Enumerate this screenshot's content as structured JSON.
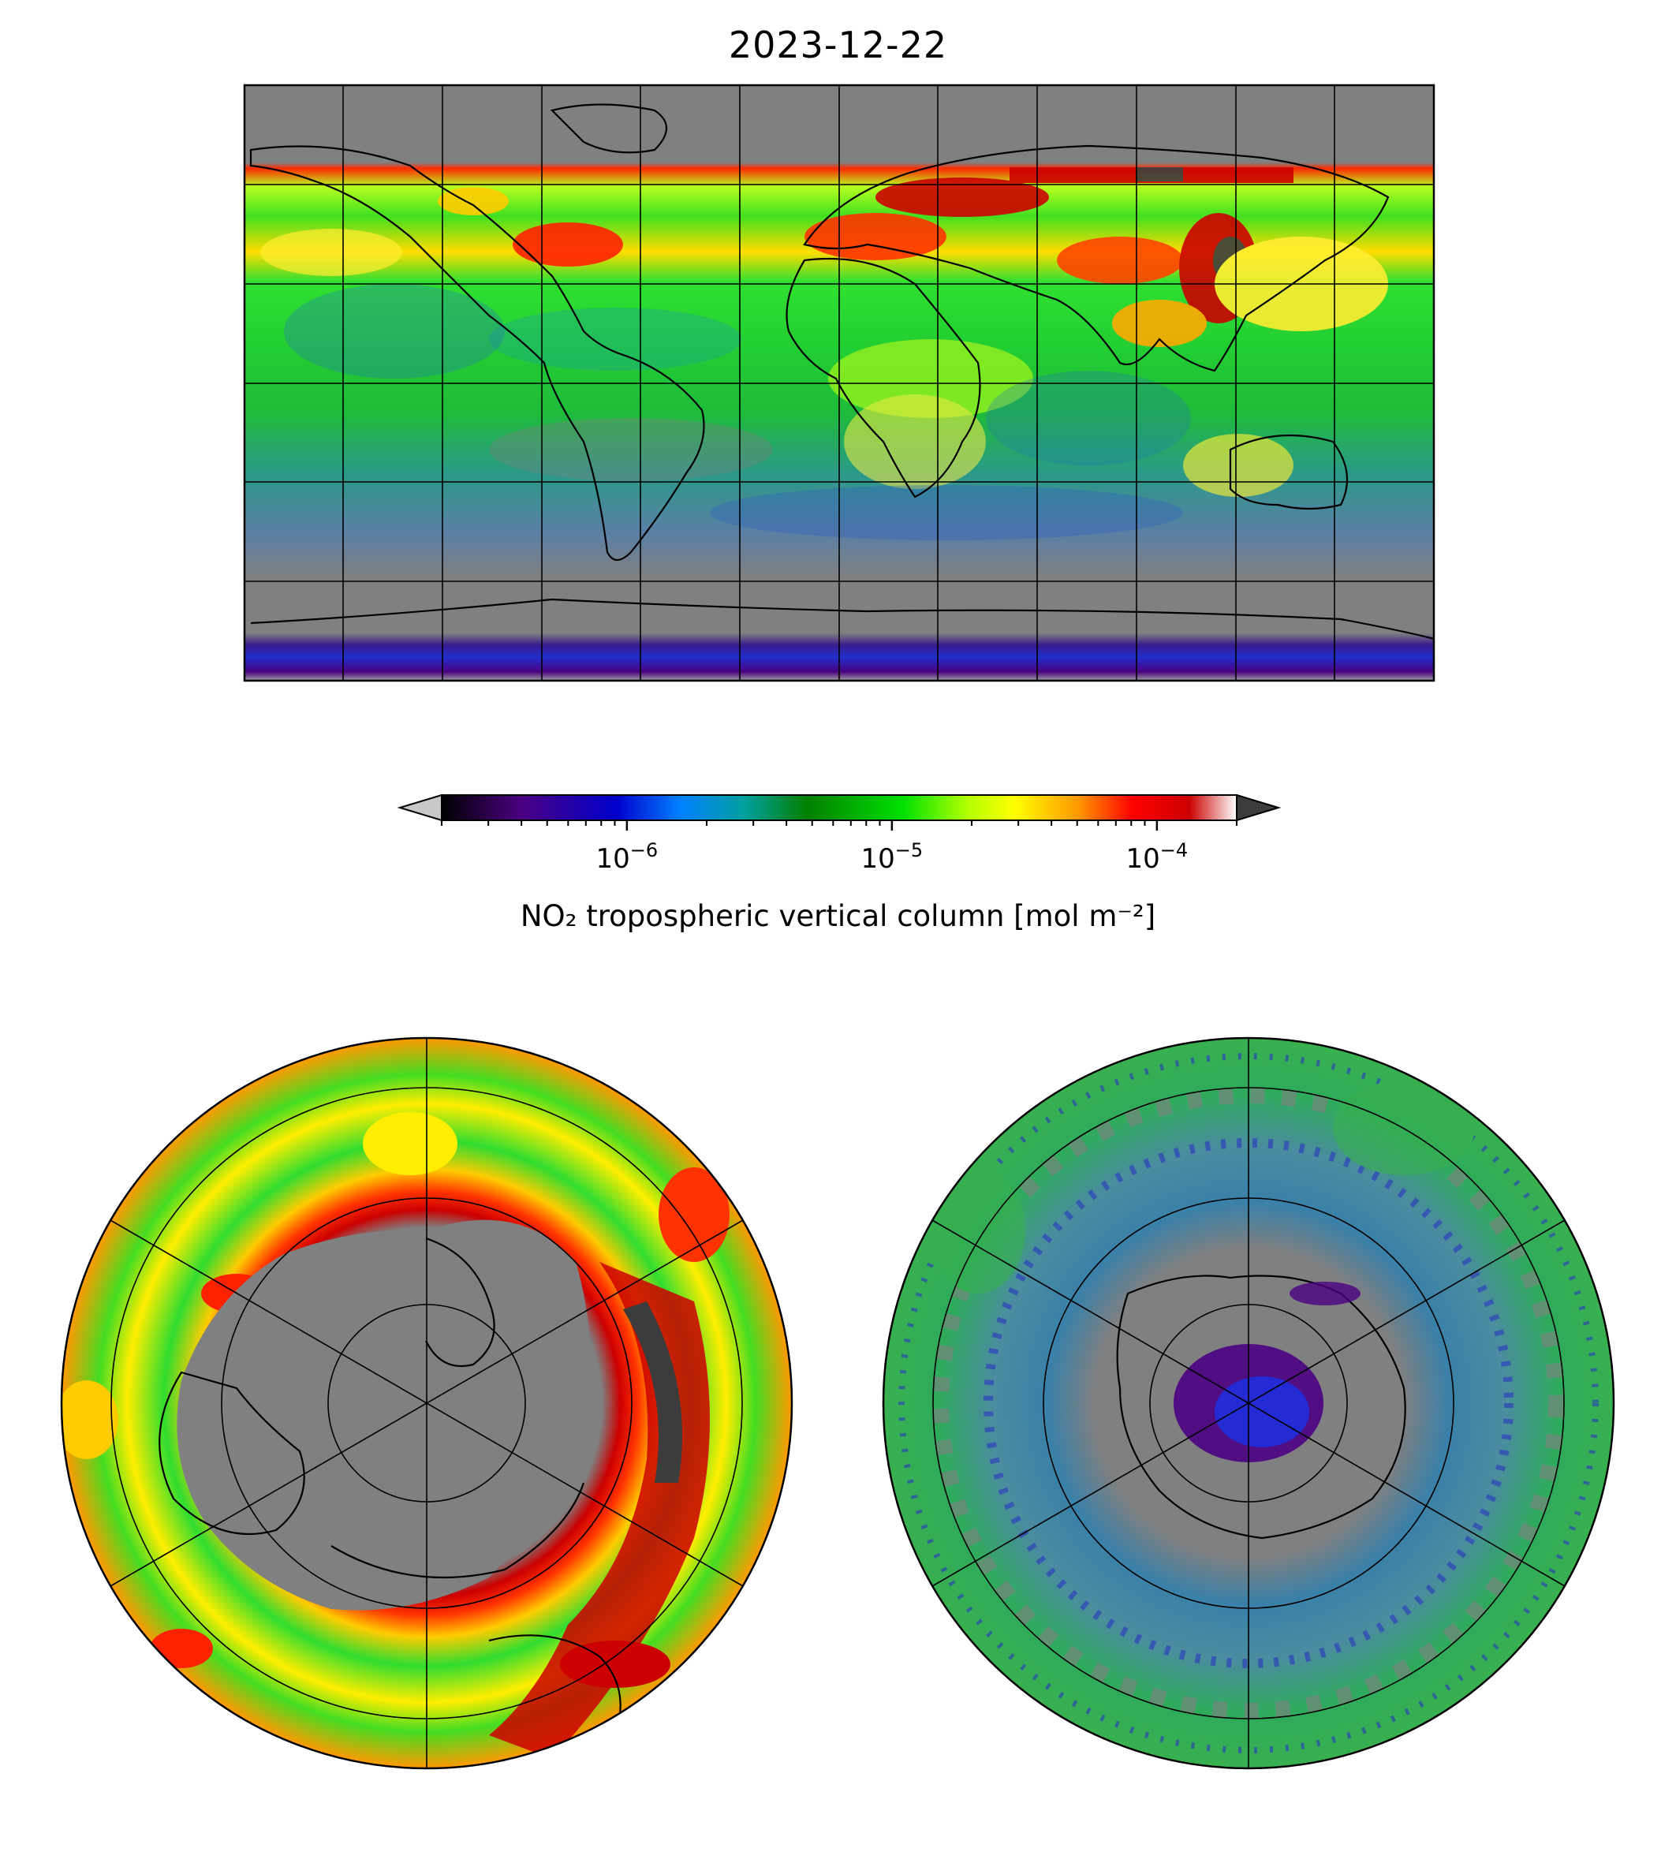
{
  "figure": {
    "title": "2023-12-22"
  },
  "colorbar": {
    "label": "NO₂ tropospheric vertical column [mol m⁻²]",
    "scale": "log",
    "ticks": [
      {
        "value": 1e-06,
        "base": "10",
        "exponent": "−6"
      },
      {
        "value": 1e-05,
        "base": "10",
        "exponent": "−5"
      },
      {
        "value": 0.0001,
        "base": "10",
        "exponent": "−4"
      }
    ],
    "range": [
      2e-07,
      0.0002
    ],
    "extend": "both",
    "colors": [
      "#000000",
      "#4b0082",
      "#0000cd",
      "#0080ff",
      "#00a0a0",
      "#008000",
      "#00e000",
      "#b0ff00",
      "#ffff00",
      "#ff9900",
      "#ff0000",
      "#cc0000",
      "#ffffff"
    ],
    "under_color": "#c8c8c8",
    "over_color": "#3c3c3c"
  },
  "panels": {
    "global_map": {
      "projection": "plate-carree",
      "missing_color": "#808080"
    },
    "north_polar_map": {
      "projection": "north-polar-stereographic",
      "missing_color": "#808080"
    },
    "south_polar_map": {
      "projection": "south-polar-stereographic",
      "missing_color": "#808080"
    }
  }
}
